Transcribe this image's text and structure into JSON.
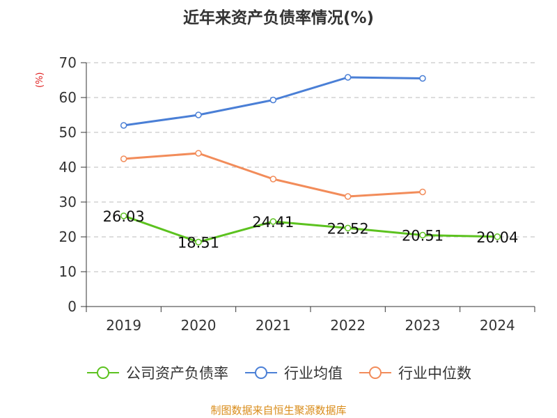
{
  "title": "近年来资产负债率情况(%)",
  "ylabel": "(%)",
  "source": "制图数据来自恒生聚源数据库",
  "chart_data": {
    "type": "line",
    "title": "近年来资产负债率情况(%)",
    "ylabel": "(%)",
    "xlabel": "",
    "categories": [
      "2019",
      "2020",
      "2021",
      "2022",
      "2023",
      "2024"
    ],
    "ylim": [
      0,
      70
    ],
    "yticks": [
      0,
      10,
      20,
      30,
      40,
      50,
      60,
      70
    ],
    "grid": true,
    "legend": "bottom",
    "series": [
      {
        "name": "公司资产负债率",
        "color": "#5cc21f",
        "values": [
          26.03,
          18.51,
          24.41,
          22.52,
          20.51,
          20.04
        ],
        "labels": [
          "26.03",
          "18.51",
          "24.41",
          "22.52",
          "20.51",
          "20.04"
        ]
      },
      {
        "name": "行业均值",
        "color": "#4a7fd6",
        "values": [
          52.0,
          55.0,
          59.3,
          65.8,
          65.5,
          null
        ]
      },
      {
        "name": "行业中位数",
        "color": "#f28c5a",
        "values": [
          42.4,
          44.0,
          36.6,
          31.6,
          32.9,
          null
        ]
      }
    ]
  }
}
